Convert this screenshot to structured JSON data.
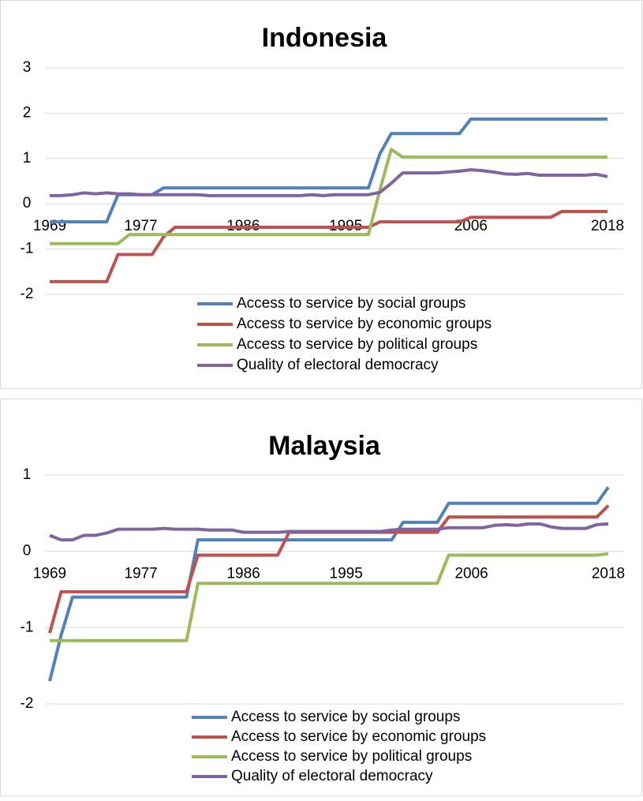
{
  "chart_data": [
    {
      "type": "line",
      "title": "Indonesia",
      "x": [
        1969,
        1970,
        1971,
        1972,
        1973,
        1974,
        1975,
        1976,
        1977,
        1978,
        1979,
        1980,
        1981,
        1982,
        1983,
        1984,
        1985,
        1986,
        1987,
        1988,
        1989,
        1990,
        1991,
        1992,
        1993,
        1994,
        1995,
        1996,
        1997,
        1998,
        1999,
        2000,
        2001,
        2002,
        2003,
        2004,
        2005,
        2006,
        2007,
        2008,
        2009,
        2010,
        2011,
        2012,
        2013,
        2014,
        2015,
        2016,
        2017,
        2018
      ],
      "xlim": [
        1969,
        2018
      ],
      "xticks": [
        1969,
        1977,
        1986,
        1995,
        2006,
        2018
      ],
      "ylim": [
        -2,
        3
      ],
      "yticks": [
        -2,
        -1,
        0,
        1,
        2,
        3
      ],
      "grid": true,
      "legend": "bottom",
      "series": [
        {
          "name": "Access to service by social groups",
          "color": "#4f81bd",
          "values": [
            -0.4,
            -0.4,
            -0.4,
            -0.4,
            -0.4,
            -0.4,
            0.2,
            0.2,
            0.2,
            0.2,
            0.35,
            0.35,
            0.35,
            0.35,
            0.35,
            0.35,
            0.35,
            0.35,
            0.35,
            0.35,
            0.35,
            0.35,
            0.35,
            0.35,
            0.35,
            0.35,
            0.35,
            0.35,
            0.35,
            1.1,
            1.55,
            1.55,
            1.55,
            1.55,
            1.55,
            1.55,
            1.55,
            1.87,
            1.87,
            1.87,
            1.87,
            1.87,
            1.87,
            1.87,
            1.87,
            1.87,
            1.87,
            1.87,
            1.87,
            1.87
          ]
        },
        {
          "name": "Access to service by economic groups",
          "color": "#c0504d",
          "values": [
            -1.72,
            -1.72,
            -1.72,
            -1.72,
            -1.72,
            -1.72,
            -1.12,
            -1.12,
            -1.12,
            -1.12,
            -0.73,
            -0.52,
            -0.52,
            -0.52,
            -0.52,
            -0.52,
            -0.52,
            -0.52,
            -0.52,
            -0.52,
            -0.52,
            -0.52,
            -0.52,
            -0.52,
            -0.52,
            -0.52,
            -0.52,
            -0.52,
            -0.52,
            -0.4,
            -0.4,
            -0.4,
            -0.4,
            -0.4,
            -0.4,
            -0.4,
            -0.4,
            -0.3,
            -0.3,
            -0.3,
            -0.3,
            -0.3,
            -0.3,
            -0.3,
            -0.3,
            -0.17,
            -0.17,
            -0.17,
            -0.17,
            -0.17
          ]
        },
        {
          "name": "Access to service by political groups",
          "color": "#9bbb59",
          "values": [
            -0.88,
            -0.88,
            -0.88,
            -0.88,
            -0.88,
            -0.88,
            -0.88,
            -0.68,
            -0.68,
            -0.68,
            -0.68,
            -0.68,
            -0.68,
            -0.68,
            -0.68,
            -0.68,
            -0.68,
            -0.68,
            -0.68,
            -0.68,
            -0.68,
            -0.68,
            -0.68,
            -0.68,
            -0.68,
            -0.68,
            -0.68,
            -0.68,
            -0.68,
            0.3,
            1.2,
            1.03,
            1.03,
            1.03,
            1.03,
            1.03,
            1.03,
            1.03,
            1.03,
            1.03,
            1.03,
            1.03,
            1.03,
            1.03,
            1.03,
            1.03,
            1.03,
            1.03,
            1.03,
            1.03
          ]
        },
        {
          "name": "Quality of electoral democracy",
          "color": "#8064a2",
          "values": [
            0.18,
            0.18,
            0.2,
            0.24,
            0.22,
            0.24,
            0.22,
            0.22,
            0.2,
            0.2,
            0.2,
            0.2,
            0.2,
            0.2,
            0.18,
            0.18,
            0.18,
            0.18,
            0.18,
            0.18,
            0.18,
            0.18,
            0.18,
            0.2,
            0.18,
            0.2,
            0.2,
            0.2,
            0.2,
            0.25,
            0.45,
            0.68,
            0.68,
            0.68,
            0.68,
            0.7,
            0.72,
            0.75,
            0.73,
            0.7,
            0.66,
            0.65,
            0.67,
            0.63,
            0.63,
            0.63,
            0.63,
            0.63,
            0.65,
            0.6
          ]
        }
      ]
    },
    {
      "type": "line",
      "title": "Malaysia",
      "x": [
        1969,
        1970,
        1971,
        1972,
        1973,
        1974,
        1975,
        1976,
        1977,
        1978,
        1979,
        1980,
        1981,
        1982,
        1983,
        1984,
        1985,
        1986,
        1987,
        1988,
        1989,
        1990,
        1991,
        1992,
        1993,
        1994,
        1995,
        1996,
        1997,
        1998,
        1999,
        2000,
        2001,
        2002,
        2003,
        2004,
        2005,
        2006,
        2007,
        2008,
        2009,
        2010,
        2011,
        2012,
        2013,
        2014,
        2015,
        2016,
        2017,
        2018
      ],
      "xlim": [
        1969,
        2018
      ],
      "xticks": [
        1969,
        1977,
        1986,
        1995,
        2006,
        2018
      ],
      "ylim": [
        -2,
        1
      ],
      "yticks": [
        -2,
        -1,
        0,
        1
      ],
      "grid": true,
      "legend": "bottom",
      "series": [
        {
          "name": "Access to service by social groups",
          "color": "#4f81bd",
          "values": [
            -1.7,
            -1.1,
            -0.6,
            -0.6,
            -0.6,
            -0.6,
            -0.6,
            -0.6,
            -0.6,
            -0.6,
            -0.6,
            -0.6,
            -0.6,
            0.15,
            0.15,
            0.15,
            0.15,
            0.15,
            0.15,
            0.15,
            0.15,
            0.15,
            0.15,
            0.15,
            0.15,
            0.15,
            0.15,
            0.15,
            0.15,
            0.15,
            0.15,
            0.38,
            0.38,
            0.38,
            0.38,
            0.63,
            0.63,
            0.63,
            0.63,
            0.63,
            0.63,
            0.63,
            0.63,
            0.63,
            0.63,
            0.63,
            0.63,
            0.63,
            0.63,
            0.84
          ]
        },
        {
          "name": "Access to service by economic groups",
          "color": "#c0504d",
          "values": [
            -1.07,
            -0.53,
            -0.53,
            -0.53,
            -0.53,
            -0.53,
            -0.53,
            -0.53,
            -0.53,
            -0.53,
            -0.53,
            -0.53,
            -0.53,
            -0.05,
            -0.05,
            -0.05,
            -0.05,
            -0.05,
            -0.05,
            -0.05,
            -0.05,
            0.25,
            0.25,
            0.25,
            0.25,
            0.25,
            0.25,
            0.25,
            0.25,
            0.25,
            0.25,
            0.25,
            0.25,
            0.25,
            0.25,
            0.45,
            0.45,
            0.45,
            0.45,
            0.45,
            0.45,
            0.45,
            0.45,
            0.45,
            0.45,
            0.45,
            0.45,
            0.45,
            0.45,
            0.6
          ]
        },
        {
          "name": "Access to service by political groups",
          "color": "#9bbb59",
          "values": [
            -1.17,
            -1.17,
            -1.17,
            -1.17,
            -1.17,
            -1.17,
            -1.17,
            -1.17,
            -1.17,
            -1.17,
            -1.17,
            -1.17,
            -1.17,
            -0.42,
            -0.42,
            -0.42,
            -0.42,
            -0.42,
            -0.42,
            -0.42,
            -0.42,
            -0.42,
            -0.42,
            -0.42,
            -0.42,
            -0.42,
            -0.42,
            -0.42,
            -0.42,
            -0.42,
            -0.42,
            -0.42,
            -0.42,
            -0.42,
            -0.42,
            -0.05,
            -0.05,
            -0.05,
            -0.05,
            -0.05,
            -0.05,
            -0.05,
            -0.05,
            -0.05,
            -0.05,
            -0.05,
            -0.05,
            -0.05,
            -0.05,
            -0.03
          ]
        },
        {
          "name": "Quality of electoral democracy",
          "color": "#8064a2",
          "values": [
            0.21,
            0.15,
            0.15,
            0.21,
            0.21,
            0.24,
            0.29,
            0.29,
            0.29,
            0.29,
            0.3,
            0.29,
            0.29,
            0.29,
            0.28,
            0.28,
            0.28,
            0.25,
            0.25,
            0.25,
            0.25,
            0.26,
            0.26,
            0.26,
            0.26,
            0.26,
            0.26,
            0.26,
            0.26,
            0.26,
            0.28,
            0.29,
            0.29,
            0.29,
            0.29,
            0.31,
            0.31,
            0.31,
            0.31,
            0.34,
            0.35,
            0.34,
            0.36,
            0.36,
            0.32,
            0.3,
            0.3,
            0.3,
            0.35,
            0.36
          ]
        }
      ]
    }
  ]
}
